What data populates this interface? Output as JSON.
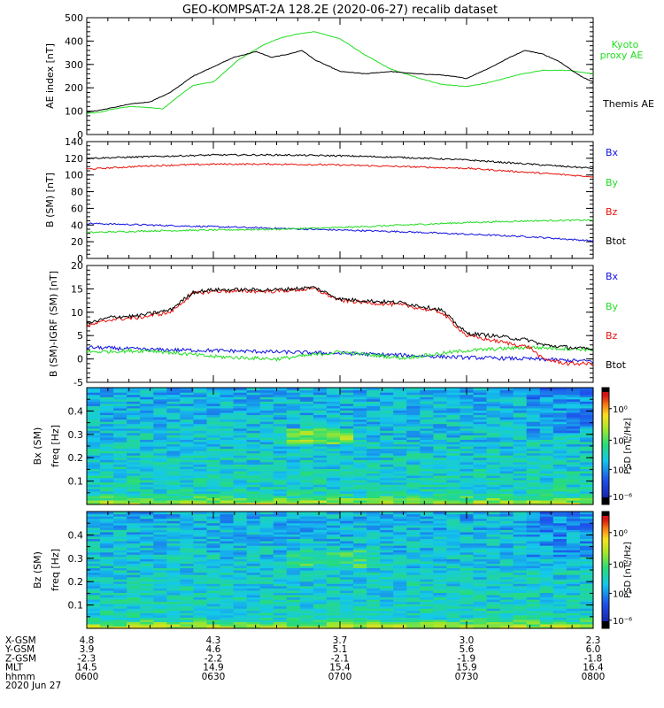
{
  "title": "GEO-KOMPSAT-2A 128.2E (2020-06-27) recalib dataset",
  "colors": {
    "black": "#000000",
    "red": "#e8120c",
    "green": "#22dd22",
    "blue": "#1010e0"
  },
  "chart_data": [
    {
      "type": "line",
      "ylabel": "AE index [nT]",
      "ylim": [
        0,
        500
      ],
      "yticks": [
        0,
        100,
        200,
        300,
        400,
        500
      ],
      "x_hours": [
        6.0,
        6.25,
        6.5,
        6.75,
        7.0,
        7.25,
        7.5,
        7.75,
        8.0
      ],
      "series": [
        {
          "name": "Kyoto proxy AE",
          "legend": [
            "Kyoto",
            "proxy AE"
          ],
          "color": "#22dd22",
          "x": [
            6.0,
            6.05,
            6.1,
            6.17,
            6.25,
            6.3,
            6.37,
            6.42,
            6.5,
            6.6,
            6.7,
            6.77,
            6.83,
            6.9,
            7.0,
            7.1,
            7.2,
            7.3,
            7.4,
            7.5,
            7.6,
            7.7,
            7.8,
            7.9,
            8.0
          ],
          "y": [
            90,
            95,
            108,
            120,
            115,
            110,
            170,
            210,
            225,
            320,
            385,
            415,
            430,
            440,
            410,
            340,
            280,
            245,
            215,
            205,
            225,
            255,
            275,
            275,
            260
          ]
        },
        {
          "name": "Themis AE",
          "legend": [
            "Themis AE"
          ],
          "color": "#000000",
          "x": [
            6.0,
            6.08,
            6.17,
            6.25,
            6.33,
            6.42,
            6.5,
            6.58,
            6.67,
            6.73,
            6.8,
            6.85,
            6.9,
            7.0,
            7.1,
            7.2,
            7.3,
            7.4,
            7.47,
            7.5,
            7.6,
            7.67,
            7.73,
            7.8,
            7.87,
            7.95,
            8.0
          ],
          "y": [
            95,
            110,
            130,
            140,
            180,
            250,
            290,
            330,
            355,
            330,
            345,
            360,
            320,
            270,
            260,
            270,
            260,
            255,
            245,
            240,
            290,
            330,
            360,
            345,
            310,
            250,
            225
          ]
        }
      ]
    },
    {
      "type": "line",
      "ylabel": "B (SM) [nT]",
      "ylim": [
        0,
        140
      ],
      "yticks": [
        0,
        20,
        40,
        60,
        80,
        100,
        120,
        140
      ],
      "series": [
        {
          "name": "Bx",
          "color": "#1010e0",
          "x": [
            6.0,
            6.25,
            6.5,
            6.75,
            7.0,
            7.25,
            7.5,
            7.75,
            8.0
          ],
          "y": [
            42,
            40,
            38,
            36,
            34,
            32,
            29,
            26,
            21
          ]
        },
        {
          "name": "By",
          "color": "#22dd22",
          "x": [
            6.0,
            6.25,
            6.5,
            6.75,
            7.0,
            7.25,
            7.5,
            7.75,
            8.0
          ],
          "y": [
            31,
            33,
            34,
            35,
            37,
            40,
            43,
            45,
            46
          ]
        },
        {
          "name": "Bz",
          "color": "#e8120c",
          "x": [
            6.0,
            6.25,
            6.5,
            6.75,
            7.0,
            7.25,
            7.5,
            7.75,
            8.0
          ],
          "y": [
            107,
            111,
            113,
            113,
            112,
            110,
            108,
            103,
            98
          ]
        },
        {
          "name": "Btot",
          "color": "#000000",
          "x": [
            6.0,
            6.25,
            6.5,
            6.75,
            7.0,
            7.25,
            7.5,
            7.75,
            8.0
          ],
          "y": [
            120,
            122,
            124,
            124,
            123,
            121,
            118,
            113,
            108
          ]
        }
      ]
    },
    {
      "type": "line",
      "ylabel": "B (SM)-IGRF (SM) [nT]",
      "ylim": [
        -5,
        20
      ],
      "yticks": [
        -5,
        0,
        5,
        10,
        15,
        20
      ],
      "series": [
        {
          "name": "Bx",
          "color": "#1010e0",
          "x": [
            6.0,
            6.25,
            6.5,
            6.75,
            7.0,
            7.25,
            7.5,
            7.75,
            8.0
          ],
          "y": [
            2.5,
            2,
            1.8,
            1.5,
            1.2,
            0.8,
            0.3,
            0,
            -0.5
          ]
        },
        {
          "name": "By",
          "color": "#22dd22",
          "x": [
            6.0,
            6.25,
            6.5,
            6.75,
            7.0,
            7.25,
            7.5,
            7.75,
            8.0
          ],
          "y": [
            1.5,
            1.8,
            0.5,
            0,
            1.5,
            0.2,
            1.8,
            2.5,
            2
          ]
        },
        {
          "name": "Bz",
          "color": "#e8120c",
          "x": [
            6.0,
            6.1,
            6.2,
            6.33,
            6.42,
            6.5,
            6.75,
            6.9,
            7.0,
            7.25,
            7.4,
            7.5,
            7.6,
            7.75,
            7.8,
            7.9,
            8.0
          ],
          "y": [
            7,
            8.5,
            8.8,
            10,
            14,
            14.5,
            14.5,
            15,
            12.5,
            11.5,
            10,
            5,
            4,
            2.5,
            0,
            -1,
            -1
          ]
        },
        {
          "name": "Btot",
          "color": "#000000",
          "x": [
            6.0,
            6.1,
            6.2,
            6.33,
            6.42,
            6.5,
            6.75,
            6.9,
            7.0,
            7.25,
            7.4,
            7.5,
            7.6,
            7.75,
            7.8,
            7.9,
            8.0
          ],
          "y": [
            7.5,
            9,
            9.2,
            10.5,
            14.3,
            14.8,
            14.8,
            15.3,
            12.8,
            12,
            10.5,
            5.5,
            5,
            4,
            3,
            2.5,
            2
          ]
        }
      ]
    },
    {
      "type": "heatmap",
      "ylabel": "Bx (SM)",
      "ylabel2": "freq [Hz]",
      "ylim": [
        0,
        0.5
      ],
      "yticks": [
        0.1,
        0.2,
        0.3,
        0.4
      ],
      "colorbar_label": "PSD [nT²/Hz]",
      "colorbar_ticks": [
        "10⁰",
        "10⁻²",
        "10⁻⁴",
        "10⁻⁶"
      ]
    },
    {
      "type": "heatmap",
      "ylabel": "Bz (SM)",
      "ylabel2": "freq [Hz]",
      "ylim": [
        0,
        0.5
      ],
      "yticks": [
        0.1,
        0.2,
        0.3,
        0.4
      ],
      "colorbar_label": "PSD [nT²/Hz]",
      "colorbar_ticks": [
        "10⁰",
        "10⁻²",
        "10⁻⁴",
        "10⁻⁶"
      ]
    }
  ],
  "orbit_table": {
    "rows": [
      {
        "label": "X-GSM",
        "values": [
          "4.8",
          "4.3",
          "3.7",
          "3.0",
          "2.3"
        ]
      },
      {
        "label": "Y-GSM",
        "values": [
          "3.9",
          "4.6",
          "5.1",
          "5.6",
          "6.0"
        ]
      },
      {
        "label": "Z-GSM",
        "values": [
          "-2.3",
          "-2.2",
          "-2.1",
          "-1.9",
          "-1.8"
        ]
      },
      {
        "label": "MLT",
        "values": [
          "14.5",
          "14.9",
          "15.4",
          "15.9",
          "16.4"
        ]
      },
      {
        "label": "hhmm",
        "values": [
          "0600",
          "0630",
          "0700",
          "0730",
          "0800"
        ]
      }
    ],
    "date": "2020 Jun 27"
  }
}
